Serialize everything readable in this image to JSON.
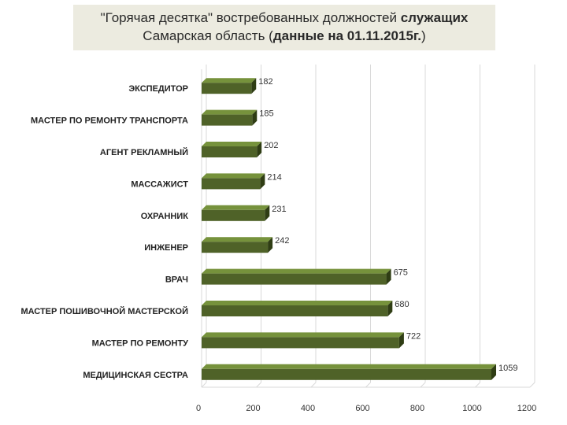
{
  "header": {
    "line1_prefix": "\"Горячая десятка\" востребованных должностей",
    "line1_bold": "служащих",
    "line2_prefix": "Самарская область (",
    "line2_bold": "данные на 01.11.2015г.",
    "line2_suffix": ")"
  },
  "chart_data": {
    "type": "bar",
    "orientation": "horizontal",
    "categories": [
      "ЭКСПЕДИТОР",
      "МАСТЕР ПО РЕМОНТУ ТРАНСПОРТА",
      "АГЕНТ РЕКЛАМНЫЙ",
      "МАССАЖИСТ",
      "ОХРАННИК",
      "ИНЖЕНЕР",
      "ВРАЧ",
      "МАСТЕР ПОШИВОЧНОЙ МАСТЕРСКОЙ",
      "МАСТЕР ПО РЕМОНТУ",
      "МЕДИЦИНСКАЯ СЕСТРА"
    ],
    "values": [
      182,
      185,
      202,
      214,
      231,
      242,
      675,
      680,
      722,
      1059
    ],
    "value_labels": [
      "182",
      "185",
      "202",
      "214",
      "231",
      "242",
      "675",
      "680",
      "722",
      "1059"
    ],
    "xlim": [
      0,
      1200
    ],
    "xticks": [
      0,
      200,
      400,
      600,
      800,
      1000,
      1200
    ],
    "xtick_labels": [
      "0",
      "200",
      "400",
      "600",
      "800",
      "1000",
      "1200"
    ],
    "grid": true,
    "bar_color": "#4f6228",
    "bar_side_color": "#2f3d14",
    "bar_top_color": "#76923c"
  }
}
